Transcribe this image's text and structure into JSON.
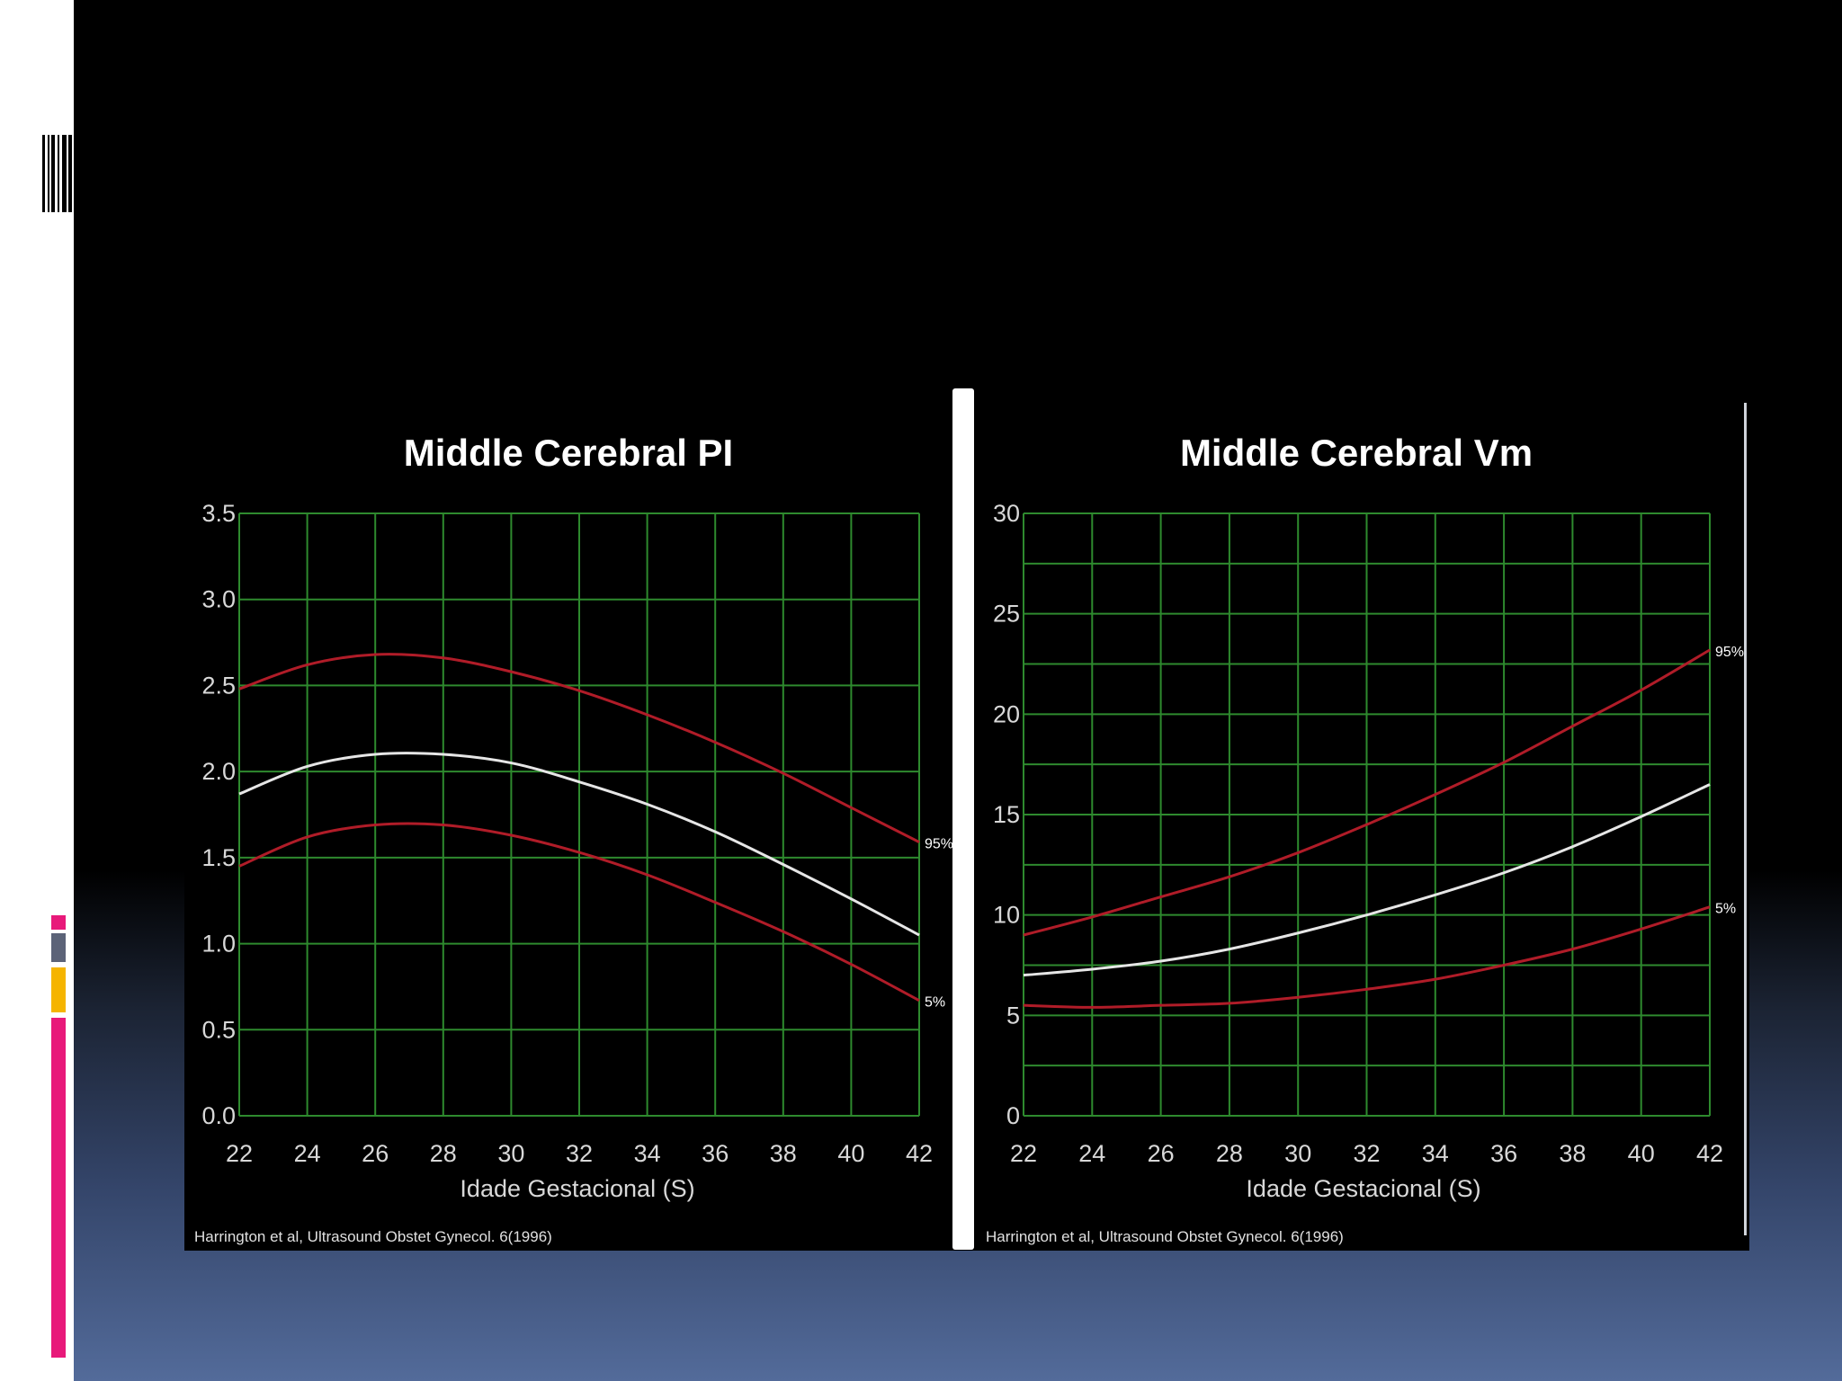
{
  "slide": {
    "colors": {
      "accent_pink": "#e8197a",
      "accent_gray": "#5c6378",
      "accent_amber": "#f5b400",
      "grid": "#2e8a2e",
      "percentile_line": "#b01c28",
      "median_line": "#e6e6e6"
    },
    "icons": [
      "barcode-icon"
    ]
  },
  "chart_data": [
    {
      "type": "line",
      "title": "Middle Cerebral PI",
      "xlabel": "Idade Gestacional (S)",
      "ylabel": "",
      "xlim": [
        22,
        42
      ],
      "ylim": [
        0,
        3.5
      ],
      "xticks": [
        "22",
        "24",
        "26",
        "28",
        "30",
        "32",
        "34",
        "36",
        "38",
        "40",
        "42"
      ],
      "yticks": [
        "0.0",
        "0.5",
        "1.0",
        "1.5",
        "2.0",
        "2.5",
        "3.0",
        "3.5"
      ],
      "grid": true,
      "x": [
        22,
        24,
        26,
        28,
        30,
        32,
        34,
        36,
        38,
        40,
        42
      ],
      "series": [
        {
          "name": "95%",
          "color": "#b01c28",
          "values": [
            2.48,
            2.62,
            2.68,
            2.66,
            2.58,
            2.47,
            2.33,
            2.17,
            1.99,
            1.79,
            1.59
          ]
        },
        {
          "name": "",
          "color": "#e6e6e6",
          "values": [
            1.87,
            2.03,
            2.1,
            2.1,
            2.05,
            1.94,
            1.81,
            1.65,
            1.46,
            1.26,
            1.05
          ]
        },
        {
          "name": "5%",
          "color": "#b01c28",
          "values": [
            1.45,
            1.62,
            1.69,
            1.69,
            1.63,
            1.53,
            1.4,
            1.24,
            1.07,
            0.88,
            0.67
          ]
        }
      ],
      "source": "Harrington et al, Ultrasound Obstet Gynecol. 6(1996)"
    },
    {
      "type": "line",
      "title": "Middle Cerebral Vm",
      "xlabel": "Idade Gestacional (S)",
      "ylabel": "",
      "xlim": [
        22,
        42
      ],
      "ylim": [
        0,
        30
      ],
      "xticks": [
        "22",
        "24",
        "26",
        "28",
        "30",
        "32",
        "34",
        "36",
        "38",
        "40",
        "42"
      ],
      "yticks": [
        "0",
        "5",
        "10",
        "15",
        "20",
        "25",
        "30"
      ],
      "grid": true,
      "x": [
        22,
        24,
        26,
        28,
        30,
        32,
        34,
        36,
        38,
        40,
        42
      ],
      "series": [
        {
          "name": "95%",
          "color": "#b01c28",
          "values": [
            9.0,
            9.9,
            10.9,
            11.9,
            13.1,
            14.5,
            16.0,
            17.6,
            19.4,
            21.2,
            23.2
          ]
        },
        {
          "name": "",
          "color": "#e6e6e6",
          "values": [
            7.0,
            7.3,
            7.7,
            8.3,
            9.1,
            10.0,
            11.0,
            12.1,
            13.4,
            14.9,
            16.5
          ]
        },
        {
          "name": "5%",
          "color": "#b01c28",
          "values": [
            5.5,
            5.4,
            5.5,
            5.6,
            5.9,
            6.3,
            6.8,
            7.5,
            8.3,
            9.3,
            10.4
          ]
        }
      ],
      "source": "Harrington et al, Ultrasound Obstet Gynecol. 6(1996)"
    }
  ]
}
